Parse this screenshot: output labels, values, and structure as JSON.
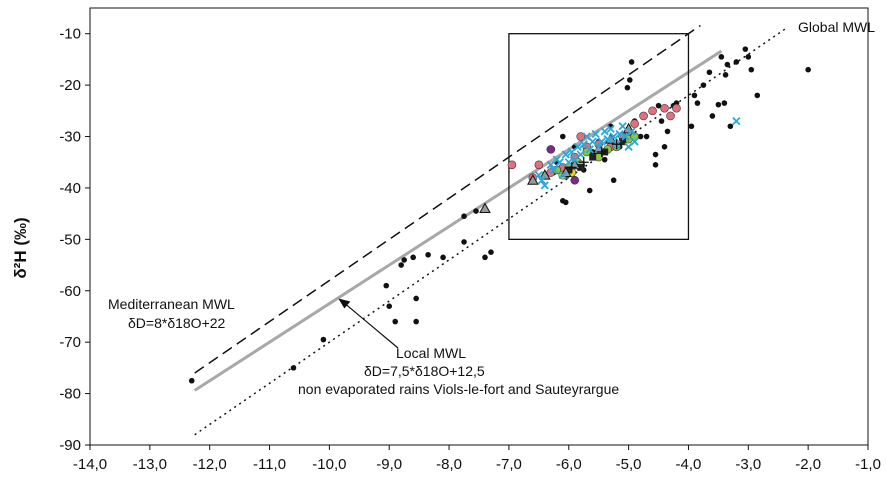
{
  "chart_data": {
    "type": "scatter",
    "ylabel": "δ²H (‰)",
    "xlim": [
      -14,
      -1
    ],
    "ylim": [
      -90,
      -5
    ],
    "xticks": [
      -14,
      -13,
      -12,
      -11,
      -10,
      -9,
      -8,
      -7,
      -6,
      -5,
      -4,
      -3,
      -2,
      -1
    ],
    "xtick_labels": [
      "-14,0",
      "-13,0",
      "-12,0",
      "-11,0",
      "-10,0",
      "-9,0",
      "-8,0",
      "-7,0",
      "-6,0",
      "-5,0",
      "-4,0",
      "-3,0",
      "-2,0",
      "-1,0"
    ],
    "yticks": [
      -90,
      -80,
      -70,
      -60,
      -50,
      -40,
      -30,
      -20,
      -10
    ],
    "ytick_labels": [
      "-90",
      "-80",
      "-70",
      "-60",
      "-50",
      "-40",
      "-30",
      "-20",
      "-10"
    ],
    "grid": false,
    "lines": [
      {
        "name": "Mediterranean MWL",
        "style": "dashed",
        "color": "#111111",
        "slope": 8,
        "intercept": 22,
        "x": [
          -12.25,
          -3.8
        ]
      },
      {
        "name": "Local MWL",
        "style": "solid",
        "color": "#a8a8a8",
        "slope": 7.5,
        "intercept": 12.5,
        "x": [
          -12.25,
          -3.45
        ]
      },
      {
        "name": "Global MWL",
        "style": "dotted",
        "color": "#111111",
        "slope": 8,
        "intercept": 10,
        "x": [
          -12.25,
          -2.35
        ]
      }
    ],
    "annotations": {
      "global_label": "Global MWL",
      "med_line1": "Mediterranean MWL",
      "med_line2": "δD=8*δ18O+22",
      "local_line1": "Local MWL",
      "local_line2": "δD=7,5*δ18O+12,5",
      "local_line3": "non evaporated rains Viols-le-fort and Sauteyrargue"
    },
    "box": {
      "x": [
        -7.0,
        -4.0
      ],
      "y": [
        -50,
        -10
      ]
    },
    "series": [
      {
        "marker": "dot",
        "color": "#111111",
        "points": [
          [
            -12.3,
            -77.5
          ],
          [
            -10.6,
            -75
          ],
          [
            -10.1,
            -69.5
          ],
          [
            -9.05,
            -59
          ],
          [
            -9.0,
            -63
          ],
          [
            -8.9,
            -66
          ],
          [
            -8.8,
            -55
          ],
          [
            -8.75,
            -54
          ],
          [
            -8.6,
            -53.5
          ],
          [
            -8.55,
            -61.5
          ],
          [
            -8.55,
            -66
          ],
          [
            -8.35,
            -53
          ],
          [
            -8.1,
            -53.5
          ],
          [
            -7.75,
            -50.5
          ],
          [
            -7.75,
            -45.5
          ],
          [
            -7.55,
            -44.5
          ],
          [
            -7.4,
            -53.5
          ],
          [
            -7.3,
            -52.5
          ],
          [
            -6.25,
            -37
          ],
          [
            -6.2,
            -35
          ],
          [
            -6.1,
            -42.5
          ],
          [
            -6.05,
            -42.8
          ],
          [
            -6.1,
            -30
          ],
          [
            -5.9,
            -32
          ],
          [
            -5.75,
            -36.5
          ],
          [
            -5.65,
            -40.5
          ],
          [
            -5.6,
            -33
          ],
          [
            -5.5,
            -31
          ],
          [
            -5.4,
            -34.5
          ],
          [
            -5.3,
            -28
          ],
          [
            -5.25,
            -38.5
          ],
          [
            -5.15,
            -32
          ],
          [
            -5.0,
            -29
          ],
          [
            -4.95,
            -15.5
          ],
          [
            -4.98,
            -19
          ],
          [
            -5.02,
            -20.5
          ],
          [
            -4.9,
            -27
          ],
          [
            -4.8,
            -30
          ],
          [
            -4.75,
            -26
          ],
          [
            -4.7,
            -30
          ],
          [
            -4.6,
            -25
          ],
          [
            -4.55,
            -33.5
          ],
          [
            -4.5,
            -24
          ],
          [
            -4.45,
            -27
          ],
          [
            -4.55,
            -35.5
          ],
          [
            -4.4,
            -32
          ],
          [
            -4.35,
            -29
          ],
          [
            -4.25,
            -24
          ],
          [
            -4.2,
            -23.5
          ],
          [
            -3.95,
            -28
          ],
          [
            -3.9,
            -22
          ],
          [
            -3.85,
            -23.5
          ],
          [
            -3.75,
            -20
          ],
          [
            -3.65,
            -17.5
          ],
          [
            -3.6,
            -26
          ],
          [
            -3.5,
            -23.8
          ],
          [
            -3.45,
            -14.5
          ],
          [
            -3.4,
            -23.5
          ],
          [
            -3.38,
            -18
          ],
          [
            -3.35,
            -16
          ],
          [
            -3.3,
            -28
          ],
          [
            -3.2,
            -15.5
          ],
          [
            -3.05,
            -13
          ],
          [
            -3.0,
            -14.5
          ],
          [
            -2.95,
            -17
          ],
          [
            -2.85,
            -22
          ],
          [
            -2.0,
            -17
          ]
        ]
      },
      {
        "marker": "circle",
        "color": "#e07080",
        "points": [
          [
            -6.95,
            -35.5
          ],
          [
            -6.6,
            -38
          ],
          [
            -6.5,
            -35.5
          ],
          [
            -6.3,
            -37
          ],
          [
            -6.1,
            -36
          ],
          [
            -5.9,
            -34
          ],
          [
            -5.8,
            -30
          ],
          [
            -5.7,
            -32
          ],
          [
            -5.5,
            -31.5
          ],
          [
            -5.3,
            -32
          ],
          [
            -5.1,
            -30
          ],
          [
            -4.9,
            -27.5
          ],
          [
            -4.75,
            -26
          ],
          [
            -4.6,
            -25
          ],
          [
            -4.4,
            -24.5
          ],
          [
            -4.3,
            -26
          ],
          [
            -4.2,
            -24.5
          ]
        ]
      },
      {
        "marker": "circle",
        "color": "#7a2a8a",
        "points": [
          [
            -6.3,
            -32.5
          ],
          [
            -6.05,
            -37.5
          ],
          [
            -5.9,
            -38.5
          ],
          [
            -5.5,
            -33.5
          ]
        ]
      },
      {
        "marker": "circle",
        "color": "#8cc63f",
        "points": [
          [
            -6.2,
            -36.5
          ],
          [
            -6.0,
            -36
          ],
          [
            -5.85,
            -35
          ],
          [
            -5.7,
            -33
          ],
          [
            -5.5,
            -34
          ],
          [
            -5.35,
            -32.5
          ],
          [
            -5.2,
            -32
          ],
          [
            -5.0,
            -30.5
          ],
          [
            -4.9,
            -30
          ]
        ]
      },
      {
        "marker": "circle",
        "color": "#e8d820",
        "points": [
          [
            -6.1,
            -37.5
          ],
          [
            -5.95,
            -37
          ],
          [
            -5.8,
            -35.5
          ],
          [
            -5.2,
            -31.5
          ]
        ]
      },
      {
        "marker": "square",
        "color": "#222222",
        "points": [
          [
            -6.0,
            -36.5
          ],
          [
            -5.8,
            -36
          ],
          [
            -5.6,
            -34
          ],
          [
            -5.4,
            -33
          ],
          [
            -5.1,
            -31
          ]
        ]
      },
      {
        "marker": "triangle",
        "color": "#999999",
        "points": [
          [
            -7.4,
            -44
          ],
          [
            -6.6,
            -38.5
          ],
          [
            -6.4,
            -37.5
          ],
          [
            -6.05,
            -37
          ],
          [
            -5.9,
            -35.5
          ],
          [
            -5.5,
            -32.5
          ],
          [
            -5.3,
            -30.5
          ],
          [
            -5.0,
            -28.5
          ]
        ]
      },
      {
        "marker": "cross",
        "color": "#2aa8d8",
        "points": [
          [
            -6.5,
            -37.5
          ],
          [
            -6.45,
            -38.5
          ],
          [
            -6.4,
            -39.5
          ],
          [
            -6.3,
            -35.5
          ],
          [
            -6.25,
            -36.5
          ],
          [
            -6.2,
            -34.5
          ],
          [
            -6.15,
            -35
          ],
          [
            -6.1,
            -37.5
          ],
          [
            -6.05,
            -33.5
          ],
          [
            -6.0,
            -35
          ],
          [
            -5.95,
            -33
          ],
          [
            -5.9,
            -34.5
          ],
          [
            -5.85,
            -32
          ],
          [
            -5.8,
            -33.5
          ],
          [
            -5.75,
            -31.5
          ],
          [
            -5.7,
            -30
          ],
          [
            -5.65,
            -32.5
          ],
          [
            -5.6,
            -31
          ],
          [
            -5.55,
            -29.5
          ],
          [
            -5.5,
            -32
          ],
          [
            -5.45,
            -31
          ],
          [
            -5.4,
            -29
          ],
          [
            -5.35,
            -30.5
          ],
          [
            -5.3,
            -28.5
          ],
          [
            -5.25,
            -30
          ],
          [
            -5.2,
            -31.5
          ],
          [
            -5.15,
            -29.5
          ],
          [
            -5.1,
            -28
          ],
          [
            -5.05,
            -30
          ],
          [
            -5.0,
            -32
          ],
          [
            -4.95,
            -29
          ],
          [
            -4.9,
            -31
          ],
          [
            -3.2,
            -27
          ]
        ]
      },
      {
        "marker": "plus",
        "color": "#111111",
        "points": [
          [
            -5.95,
            -36
          ],
          [
            -5.75,
            -35
          ],
          [
            -5.45,
            -33
          ],
          [
            -5.2,
            -31.5
          ]
        ]
      }
    ]
  }
}
